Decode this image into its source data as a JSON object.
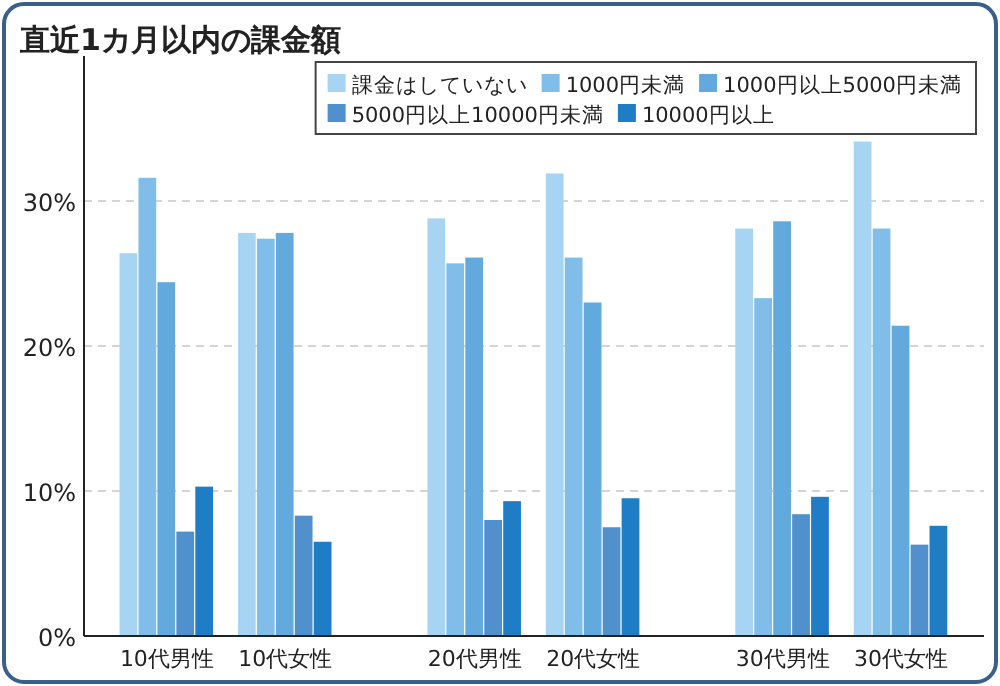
{
  "chart_data": {
    "type": "bar",
    "title": "直近1カ月以内の課金額",
    "categories": [
      "10代男性",
      "10代女性",
      "20代男性",
      "20代女性",
      "30代男性",
      "30代女性"
    ],
    "series": [
      {
        "name": "課金はしていない",
        "color": "#a6d4f2",
        "values": [
          26.4,
          27.8,
          28.8,
          31.9,
          28.1,
          34.1
        ]
      },
      {
        "name": "1000円未満",
        "color": "#80bee9",
        "values": [
          31.6,
          27.4,
          25.7,
          26.1,
          23.3,
          28.1
        ]
      },
      {
        "name": "1000円以上5000円未満",
        "color": "#62a9dd",
        "values": [
          24.4,
          27.8,
          26.1,
          23.0,
          28.6,
          21.4
        ]
      },
      {
        "name": "5000円以上10000円未満",
        "color": "#5090cd",
        "values": [
          7.2,
          8.3,
          8.0,
          7.5,
          8.4,
          6.3
        ]
      },
      {
        "name": "10000円以上",
        "color": "#1e7dc4",
        "values": [
          10.3,
          6.5,
          9.3,
          9.5,
          9.6,
          7.6
        ]
      }
    ],
    "ylim": [
      0,
      40
    ],
    "yticks": [
      {
        "value": 0,
        "label": "0%"
      },
      {
        "value": 10,
        "label": "10%"
      },
      {
        "value": 20,
        "label": "20%"
      },
      {
        "value": 30,
        "label": "30%"
      }
    ],
    "grid": "y",
    "legend": "top right"
  }
}
